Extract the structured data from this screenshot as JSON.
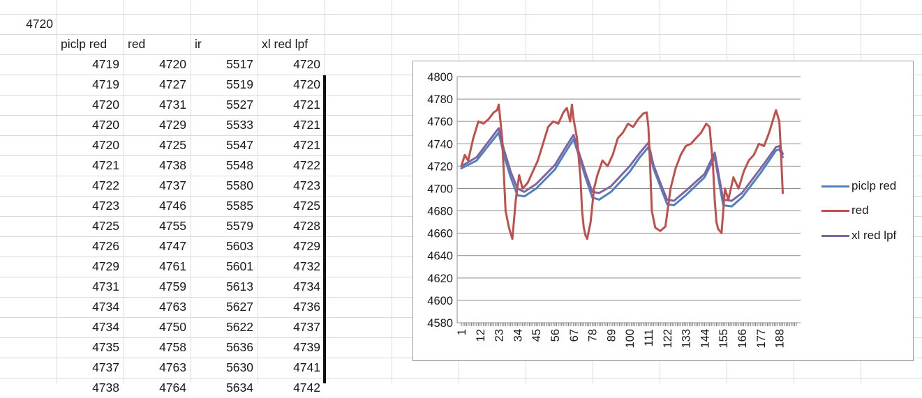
{
  "sheet": {
    "top_value": "4720",
    "headers": [
      "piclp red",
      "red",
      "ir",
      "xl red lpf"
    ],
    "rows": [
      [
        "4719",
        "4720",
        "5517",
        "4720"
      ],
      [
        "4719",
        "4727",
        "5519",
        "4720"
      ],
      [
        "4720",
        "4731",
        "5527",
        "4721"
      ],
      [
        "4720",
        "4729",
        "5533",
        "4721"
      ],
      [
        "4720",
        "4725",
        "5547",
        "4721"
      ],
      [
        "4721",
        "4738",
        "5548",
        "4722"
      ],
      [
        "4722",
        "4737",
        "5580",
        "4723"
      ],
      [
        "4723",
        "4746",
        "5585",
        "4725"
      ],
      [
        "4725",
        "4755",
        "5579",
        "4728"
      ],
      [
        "4726",
        "4747",
        "5603",
        "4729"
      ],
      [
        "4729",
        "4761",
        "5601",
        "4732"
      ],
      [
        "4731",
        "4759",
        "5613",
        "4734"
      ],
      [
        "4734",
        "4763",
        "5627",
        "4736"
      ],
      [
        "4734",
        "4750",
        "5622",
        "4737"
      ],
      [
        "4735",
        "4758",
        "5636",
        "4739"
      ],
      [
        "4737",
        "4763",
        "5630",
        "4741"
      ],
      [
        "4738",
        "4764",
        "5634",
        "4742"
      ]
    ]
  },
  "chart_data": {
    "type": "line",
    "title": "",
    "xlabel": "",
    "ylabel": "",
    "ylim": [
      4580,
      4800
    ],
    "y_ticks": [
      "4800",
      "4780",
      "4760",
      "4740",
      "4720",
      "4700",
      "4680",
      "4660",
      "4640",
      "4620",
      "4600",
      "4580"
    ],
    "x_range": [
      1,
      198
    ],
    "x_tick_labels": [
      "1",
      "12",
      "23",
      "34",
      "45",
      "56",
      "67",
      "78",
      "89",
      "100",
      "111",
      "122",
      "133",
      "144",
      "155",
      "166",
      "177",
      "188"
    ],
    "grid": "horizontal",
    "legend_position": "right",
    "series": [
      {
        "name": "piclp red",
        "color": "#4f81bd",
        "x": [
          1,
          10,
          23,
          26,
          30,
          34,
          38,
          45,
          56,
          62,
          67,
          70,
          74,
          78,
          82,
          89,
          100,
          106,
          111,
          114,
          118,
          122,
          126,
          133,
          144,
          150,
          155,
          160,
          166,
          177,
          186,
          188,
          190
        ],
        "y": [
          4718,
          4725,
          4750,
          4730,
          4710,
          4694,
          4693,
          4700,
          4717,
          4732,
          4744,
          4730,
          4710,
          4692,
          4690,
          4697,
          4715,
          4728,
          4737,
          4718,
          4702,
          4686,
          4685,
          4694,
          4710,
          4728,
          4685,
          4684,
          4692,
          4714,
          4734,
          4735,
          4728
        ]
      },
      {
        "name": "red",
        "color": "#c0504d",
        "x": [
          1,
          3,
          5,
          8,
          11,
          14,
          17,
          20,
          22,
          23,
          25,
          27,
          29,
          31,
          33,
          35,
          37,
          40,
          43,
          46,
          49,
          52,
          55,
          58,
          61,
          63,
          65,
          66,
          67,
          69,
          71,
          72,
          73,
          74,
          75,
          77,
          79,
          81,
          84,
          87,
          90,
          93,
          96,
          99,
          102,
          105,
          108,
          110,
          111,
          112,
          113,
          115,
          118,
          121,
          124,
          127,
          130,
          133,
          136,
          139,
          142,
          145,
          147,
          149,
          150,
          151,
          152,
          154,
          156,
          158,
          161,
          164,
          167,
          170,
          173,
          176,
          179,
          182,
          184,
          186,
          188,
          189,
          190
        ],
        "y": [
          4720,
          4730,
          4725,
          4745,
          4760,
          4758,
          4762,
          4768,
          4770,
          4775,
          4745,
          4680,
          4665,
          4655,
          4690,
          4712,
          4700,
          4705,
          4715,
          4725,
          4740,
          4755,
          4760,
          4758,
          4768,
          4772,
          4760,
          4775,
          4762,
          4745,
          4710,
          4680,
          4665,
          4658,
          4655,
          4670,
          4700,
          4712,
          4725,
          4720,
          4730,
          4745,
          4750,
          4758,
          4755,
          4762,
          4767,
          4768,
          4755,
          4720,
          4680,
          4665,
          4662,
          4666,
          4700,
          4718,
          4730,
          4738,
          4740,
          4745,
          4750,
          4758,
          4755,
          4720,
          4690,
          4670,
          4664,
          4660,
          4700,
          4690,
          4710,
          4700,
          4715,
          4725,
          4730,
          4740,
          4738,
          4750,
          4760,
          4770,
          4760,
          4730,
          4696
        ]
      },
      {
        "name": "xl red lpf",
        "color": "#8064a2",
        "x": [
          1,
          10,
          23,
          26,
          30,
          34,
          38,
          45,
          56,
          62,
          67,
          70,
          74,
          78,
          82,
          89,
          100,
          106,
          111,
          114,
          118,
          122,
          126,
          133,
          144,
          150,
          155,
          160,
          166,
          177,
          186,
          188,
          190
        ],
        "y": [
          4720,
          4728,
          4754,
          4735,
          4715,
          4700,
          4697,
          4704,
          4721,
          4736,
          4748,
          4733,
          4714,
          4697,
          4696,
          4702,
          4720,
          4732,
          4741,
          4721,
          4705,
          4690,
          4689,
          4698,
          4713,
          4732,
          4690,
          4689,
          4696,
          4718,
          4737,
          4738,
          4731
        ]
      }
    ]
  }
}
